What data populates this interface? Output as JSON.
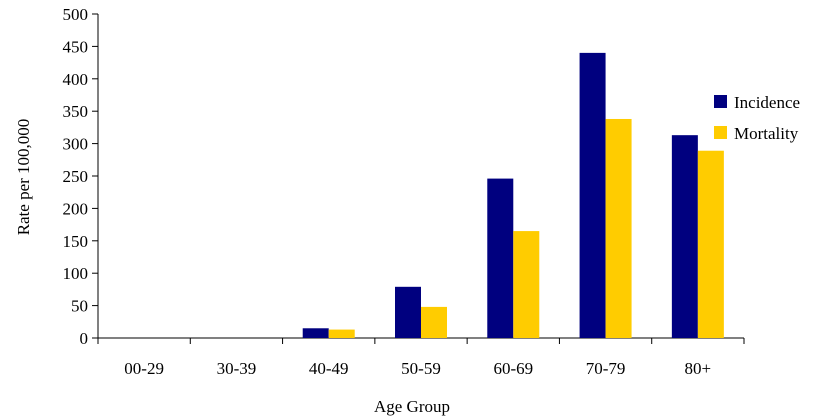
{
  "chart_data": {
    "type": "bar",
    "title": "",
    "xlabel": "Age Group",
    "ylabel": "Rate per 100,000",
    "categories": [
      "00-29",
      "30-39",
      "40-49",
      "50-59",
      "60-69",
      "70-79",
      "80+"
    ],
    "series": [
      {
        "name": "Incidence",
        "color": "#00007f",
        "values": [
          0,
          0,
          15,
          79,
          246,
          440,
          313
        ]
      },
      {
        "name": "Mortality",
        "color": "#ffcc00",
        "values": [
          0,
          0,
          13,
          48,
          165,
          338,
          289
        ]
      }
    ],
    "ylim": [
      0,
      500
    ],
    "yticks": [
      0,
      50,
      100,
      150,
      200,
      250,
      300,
      350,
      400,
      450,
      500
    ],
    "grid": false,
    "legend_position": "right"
  }
}
